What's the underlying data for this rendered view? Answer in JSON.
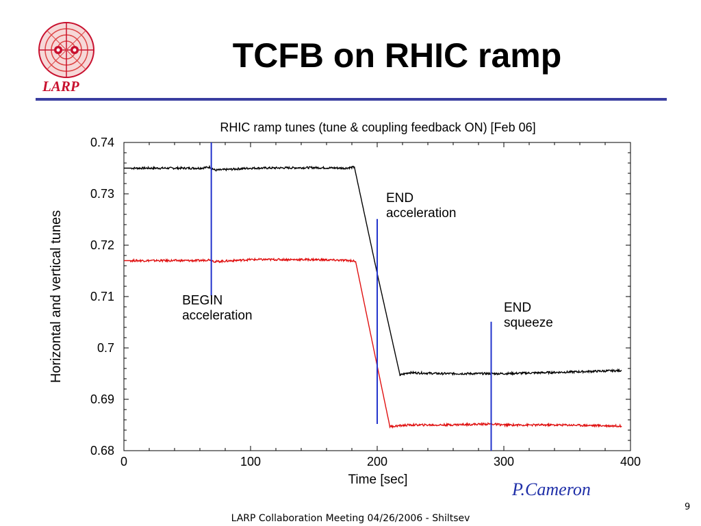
{
  "slide": {
    "title": "TCFB on RHIC ramp",
    "logo_text": "LARP",
    "credit": "P.Cameron",
    "footer": "LARP Collaboration Meeting 04/26/2006 - Shiltsev",
    "page_number": "9",
    "rule_color": "#3a3ea0"
  },
  "chart_data": {
    "type": "line",
    "title": "RHIC ramp tunes (tune & coupling feedback ON)    [Feb 06]",
    "xlabel": "Time [sec]",
    "ylabel": "Horizontal and vertical tunes",
    "xlim": [
      0,
      400
    ],
    "ylim": [
      0.68,
      0.74
    ],
    "xticks": [
      0,
      100,
      200,
      300,
      400
    ],
    "xtick_labels": [
      "0",
      "100",
      "200",
      "300",
      "400"
    ],
    "yticks": [
      0.68,
      0.69,
      0.7,
      0.71,
      0.72,
      0.73,
      0.74
    ],
    "ytick_labels": [
      "0.68",
      "0.69",
      "0.7",
      "0.71",
      "0.72",
      "0.73",
      "0.74"
    ],
    "grid": false,
    "series": [
      {
        "color": "#000000",
        "x": [
          0,
          60,
          68,
          72,
          100,
          150,
          175,
          182,
          200,
          218,
          225,
          250,
          300,
          350,
          393
        ],
        "y": [
          0.735,
          0.735,
          0.7352,
          0.7346,
          0.735,
          0.7351,
          0.735,
          0.7352,
          0.7145,
          0.6947,
          0.6952,
          0.695,
          0.695,
          0.6953,
          0.6956
        ]
      },
      {
        "color": "#e01010",
        "x": [
          0,
          60,
          68,
          72,
          100,
          150,
          180,
          183,
          200,
          210,
          225,
          250,
          290,
          300,
          350,
          393
        ],
        "y": [
          0.717,
          0.717,
          0.7172,
          0.7168,
          0.7172,
          0.7172,
          0.717,
          0.7168,
          0.6965,
          0.6847,
          0.685,
          0.685,
          0.6852,
          0.685,
          0.685,
          0.6848
        ]
      }
    ],
    "markers": [
      {
        "x": 69,
        "y_from": 0.7101,
        "y_to": 0.74,
        "color": "#2233cc"
      },
      {
        "x": 200,
        "y_from": 0.6852,
        "y_to": 0.7251,
        "color": "#2233cc"
      },
      {
        "x": 290,
        "y_from": 0.68,
        "y_to": 0.7051,
        "color": "#2233cc"
      }
    ],
    "annotations": [
      {
        "lines": [
          "BEGIN",
          "acceleration"
        ],
        "x": 46,
        "y": 0.7085
      },
      {
        "lines": [
          "END",
          "acceleration"
        ],
        "x": 207,
        "y": 0.7284
      },
      {
        "lines": [
          "END",
          "squeeze"
        ],
        "x": 300,
        "y": 0.7071
      }
    ]
  }
}
